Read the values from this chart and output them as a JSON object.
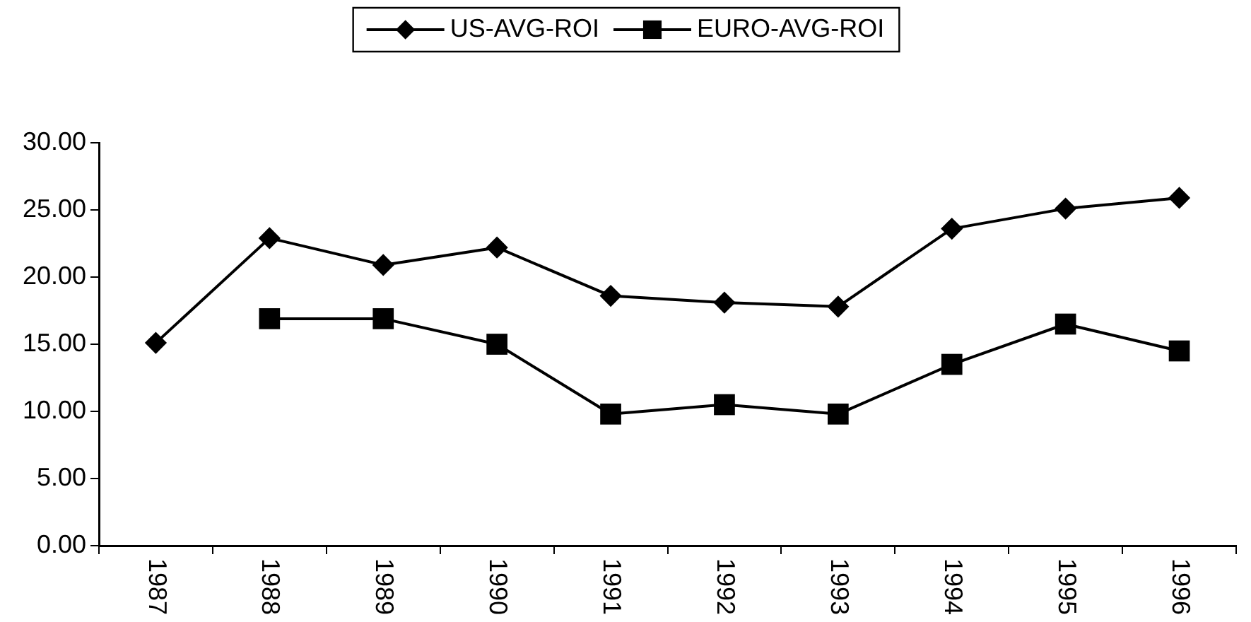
{
  "chart_data": {
    "type": "line",
    "categories": [
      "1987",
      "1988",
      "1989",
      "1990",
      "1991",
      "1992",
      "1993",
      "1994",
      "1995",
      "1996"
    ],
    "series": [
      {
        "name": "US-AVG-ROI",
        "color": "#000000",
        "marker": "diamond",
        "values": [
          15.1,
          22.9,
          20.9,
          22.2,
          18.6,
          18.1,
          17.8,
          23.6,
          25.1,
          25.9
        ]
      },
      {
        "name": "EURO-AVG-ROI",
        "color": "#000000",
        "marker": "square",
        "values": [
          null,
          16.9,
          16.9,
          15.0,
          9.8,
          10.5,
          9.8,
          13.5,
          16.5,
          14.5
        ]
      }
    ],
    "ylim": [
      0,
      30
    ],
    "yticks": [
      {
        "value": 0,
        "label": "0.00"
      },
      {
        "value": 5,
        "label": "5.00"
      },
      {
        "value": 10,
        "label": "10.00"
      },
      {
        "value": 15,
        "label": "15.00"
      },
      {
        "value": 20,
        "label": "20.00"
      },
      {
        "value": 25,
        "label": "25.00"
      },
      {
        "value": 30,
        "label": "30.00"
      }
    ],
    "grid": false,
    "legend": "top",
    "line_style": "solid"
  }
}
